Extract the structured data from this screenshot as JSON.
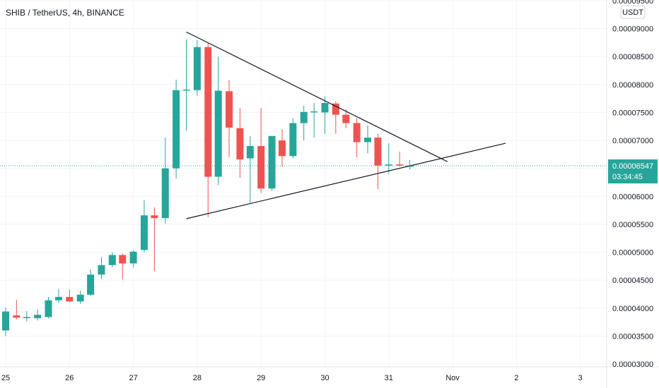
{
  "header": {
    "title": "SHIB / TetherUS, 4h, BINANCE"
  },
  "price_axis": {
    "currency": "USDT",
    "current_price": "0.00006547",
    "countdown": "03:34:45"
  },
  "colors": {
    "up": "#26a69a",
    "down": "#ef5350",
    "trendline": "#131722",
    "price_label_bg": "#26a69a"
  },
  "chart_data": {
    "type": "candlestick",
    "title": "SHIB / TetherUS, 4h, BINANCE",
    "grid": true,
    "x_ticks": [
      "25",
      "26",
      "27",
      "28",
      "29",
      "30",
      "31",
      "Nov",
      "2",
      "3"
    ],
    "y_ticks": [
      "0.00003000",
      "0.00003500",
      "0.00004000",
      "0.00004500",
      "0.00005000",
      "0.00005500",
      "0.00006000",
      "0.00006500",
      "0.00007000",
      "0.00007500",
      "0.00008000",
      "0.00008500",
      "0.00009000",
      "0.00009500"
    ],
    "ylim": [
      3e-05,
      9.55e-05
    ],
    "xlim": [
      25.0,
      28.58
    ],
    "candles": [
      {
        "t": 25.0,
        "o": 3.6e-05,
        "h": 4.01e-05,
        "l": 3.5e-05,
        "c": 3.94e-05
      },
      {
        "t": 25.17,
        "o": 3.87e-05,
        "h": 4.15e-05,
        "l": 3.8e-05,
        "c": 3.83e-05
      },
      {
        "t": 25.33,
        "o": 3.82e-05,
        "h": 3.95e-05,
        "l": 3.76e-05,
        "c": 3.84e-05
      },
      {
        "t": 25.5,
        "o": 3.82e-05,
        "h": 3.98e-05,
        "l": 3.78e-05,
        "c": 3.88e-05
      },
      {
        "t": 25.67,
        "o": 3.84e-05,
        "h": 4.2e-05,
        "l": 3.82e-05,
        "c": 4.14e-05
      },
      {
        "t": 25.83,
        "o": 4.14e-05,
        "h": 4.34e-05,
        "l": 4.09e-05,
        "c": 4.2e-05
      },
      {
        "t": 26.0,
        "o": 4.2e-05,
        "h": 4.33e-05,
        "l": 4.11e-05,
        "c": 4.12e-05
      },
      {
        "t": 26.17,
        "o": 4.12e-05,
        "h": 4.31e-05,
        "l": 4.08e-05,
        "c": 4.24e-05
      },
      {
        "t": 26.33,
        "o": 4.24e-05,
        "h": 4.69e-05,
        "l": 4.22e-05,
        "c": 4.6e-05
      },
      {
        "t": 26.5,
        "o": 4.6e-05,
        "h": 4.91e-05,
        "l": 4.52e-05,
        "c": 4.77e-05
      },
      {
        "t": 26.67,
        "o": 4.77e-05,
        "h": 5e-05,
        "l": 4.73e-05,
        "c": 4.95e-05
      },
      {
        "t": 26.83,
        "o": 4.95e-05,
        "h": 4.98e-05,
        "l": 4.51e-05,
        "c": 4.8e-05
      },
      {
        "t": 27.0,
        "o": 4.8e-05,
        "h": 5.04e-05,
        "l": 4.73e-05,
        "c": 5.01e-05
      },
      {
        "t": 27.17,
        "o": 5.04e-05,
        "h": 5.93e-05,
        "l": 5e-05,
        "c": 5.66e-05
      },
      {
        "t": 27.33,
        "o": 5.66e-05,
        "h": 5.8e-05,
        "l": 4.66e-05,
        "c": 5.61e-05
      },
      {
        "t": 27.5,
        "o": 5.61e-05,
        "h": 7.05e-05,
        "l": 5.51e-05,
        "c": 6.5e-05
      },
      {
        "t": 27.67,
        "o": 6.5e-05,
        "h": 8.09e-05,
        "l": 6.32e-05,
        "c": 7.9e-05
      },
      {
        "t": 27.83,
        "o": 7.9e-05,
        "h": 8.81e-05,
        "l": 7.17e-05,
        "c": 7.91e-05
      },
      {
        "t": 28.0,
        "o": 7.9e-05,
        "h": 8.8e-05,
        "l": 7.8e-05,
        "c": 8.67e-05
      },
      {
        "t": 28.17,
        "o": 8.67e-05,
        "h": 8.75e-05,
        "l": 5.63e-05,
        "c": 6.35e-05
      },
      {
        "t": 28.33,
        "o": 6.35e-05,
        "h": 8.5e-05,
        "l": 6.2e-05,
        "c": 7.89e-05
      },
      {
        "t": 28.5,
        "o": 7.88e-05,
        "h": 8.08e-05,
        "l": 6.7e-05,
        "c": 7.23e-05
      },
      {
        "t": 28.67,
        "o": 7.22e-05,
        "h": 7.58e-05,
        "l": 6.33e-05,
        "c": 6.66e-05
      },
      {
        "t": 28.83,
        "o": 6.68e-05,
        "h": 7.08e-05,
        "l": 5.88e-05,
        "c": 6.9e-05
      },
      {
        "t": 29.0,
        "o": 6.9e-05,
        "h": 7.58e-05,
        "l": 6.06e-05,
        "c": 6.14e-05
      },
      {
        "t": 29.17,
        "o": 6.14e-05,
        "h": 7.06e-05,
        "l": 6.1e-05,
        "c": 7.08e-05
      },
      {
        "t": 29.33,
        "o": 7e-05,
        "h": 7.2e-05,
        "l": 6.53e-05,
        "c": 6.72e-05
      },
      {
        "t": 29.5,
        "o": 6.72e-05,
        "h": 7.4e-05,
        "l": 6.68e-05,
        "c": 7.31e-05
      },
      {
        "t": 29.67,
        "o": 7.31e-05,
        "h": 7.62e-05,
        "l": 7e-05,
        "c": 7.51e-05
      },
      {
        "t": 29.83,
        "o": 7.51e-05,
        "h": 7.67e-05,
        "l": 7.05e-05,
        "c": 7.52e-05
      },
      {
        "t": 30.0,
        "o": 7.5e-05,
        "h": 7.79e-05,
        "l": 7.12e-05,
        "c": 7.67e-05
      },
      {
        "t": 30.17,
        "o": 7.66e-05,
        "h": 7.7e-05,
        "l": 7.12e-05,
        "c": 7.46e-05
      },
      {
        "t": 30.33,
        "o": 7.46e-05,
        "h": 7.56e-05,
        "l": 7.22e-05,
        "c": 7.31e-05
      },
      {
        "t": 30.5,
        "o": 7.31e-05,
        "h": 7.4e-05,
        "l": 6.7e-05,
        "c": 6.97e-05
      },
      {
        "t": 30.67,
        "o": 6.97e-05,
        "h": 7.27e-05,
        "l": 6.77e-05,
        "c": 7.05e-05
      },
      {
        "t": 30.83,
        "o": 7.05e-05,
        "h": 7.12e-05,
        "l": 6.13e-05,
        "c": 6.55e-05
      },
      {
        "t": 31.0,
        "o": 6.55e-05,
        "h": 6.95e-05,
        "l": 6.4e-05,
        "c": 6.57e-05
      },
      {
        "t": 31.17,
        "o": 6.57e-05,
        "h": 6.8e-05,
        "l": 6.53e-05,
        "c": 6.56e-05
      },
      {
        "t": 31.33,
        "o": 6.53e-05,
        "h": 6.65e-05,
        "l": 6.48e-05,
        "c": 6.55e-05
      }
    ],
    "trendlines": [
      {
        "x1": 27.83,
        "y1": 8.94e-05,
        "x2": 31.92,
        "y2": 6.62e-05
      },
      {
        "x1": 27.83,
        "y1": 5.6e-05,
        "x2": 32.83,
        "y2": 6.95e-05
      }
    ]
  }
}
